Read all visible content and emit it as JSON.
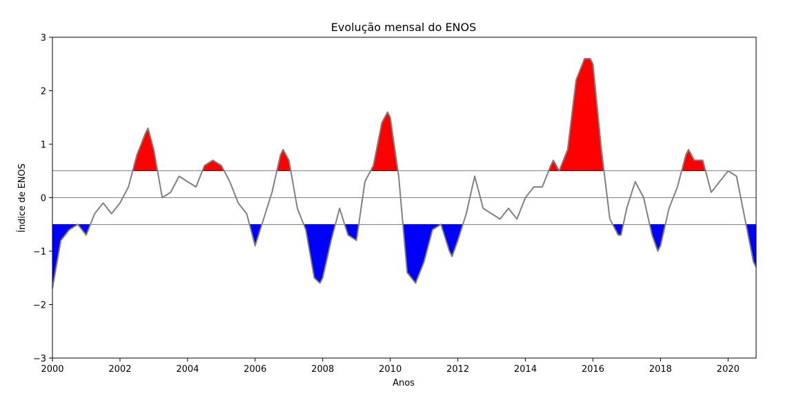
{
  "chart_data": {
    "type": "area",
    "title": "Evolução mensal do ENOS",
    "xlabel": "Anos",
    "ylabel": "Índice de ENOS",
    "xlim": [
      2000,
      2020.83
    ],
    "ylim": [
      -3,
      3
    ],
    "xticks": [
      2000,
      2002,
      2004,
      2006,
      2008,
      2010,
      2012,
      2014,
      2016,
      2018,
      2020
    ],
    "xtick_labels": [
      "2000",
      "2002",
      "2004",
      "2006",
      "2008",
      "2010",
      "2012",
      "2014",
      "2016",
      "2018",
      "2020"
    ],
    "yticks": [
      -3,
      -2,
      -1,
      0,
      1,
      2,
      3
    ],
    "ytick_labels": [
      "−3",
      "−2",
      "−1",
      "0",
      "1",
      "2",
      "3"
    ],
    "reference_lines": [
      0.5,
      0,
      -0.5
    ],
    "fill_above": {
      "threshold": 0.5,
      "color": "#ff0000"
    },
    "fill_below": {
      "threshold": -0.5,
      "color": "#0000ff"
    },
    "line_color": "#808080",
    "grid": false,
    "series": [
      {
        "x": [
          2000.0,
          2000.25,
          2000.5,
          2000.75,
          2001.0,
          2001.25,
          2001.5,
          2001.75,
          2002.0,
          2002.25,
          2002.5,
          2002.75,
          2002.83,
          2003.0,
          2003.25,
          2003.5,
          2003.75,
          2004.0,
          2004.25,
          2004.5,
          2004.75,
          2005.0,
          2005.25,
          2005.5,
          2005.75,
          2006.0,
          2006.25,
          2006.5,
          2006.75,
          2006.83,
          2007.0,
          2007.25,
          2007.5,
          2007.75,
          2007.92,
          2008.0,
          2008.25,
          2008.5,
          2008.75,
          2009.0,
          2009.25,
          2009.5,
          2009.75,
          2009.92,
          2010.0,
          2010.25,
          2010.5,
          2010.75,
          2011.0,
          2011.25,
          2011.5,
          2011.75,
          2011.83,
          2012.0,
          2012.25,
          2012.5,
          2012.75,
          2013.0,
          2013.25,
          2013.5,
          2013.75,
          2014.0,
          2014.25,
          2014.5,
          2014.75,
          2014.83,
          2015.0,
          2015.25,
          2015.5,
          2015.75,
          2015.92,
          2016.0,
          2016.25,
          2016.5,
          2016.75,
          2016.83,
          2017.0,
          2017.25,
          2017.5,
          2017.75,
          2017.92,
          2018.0,
          2018.25,
          2018.5,
          2018.75,
          2018.83,
          2019.0,
          2019.25,
          2019.5,
          2019.75,
          2020.0,
          2020.25,
          2020.5,
          2020.75,
          2020.83
        ],
        "values": [
          -1.7,
          -0.8,
          -0.6,
          -0.5,
          -0.7,
          -0.3,
          -0.1,
          -0.3,
          -0.1,
          0.2,
          0.8,
          1.2,
          1.3,
          0.9,
          0.0,
          0.1,
          0.4,
          0.3,
          0.2,
          0.6,
          0.7,
          0.6,
          0.3,
          -0.1,
          -0.3,
          -0.9,
          -0.4,
          0.1,
          0.8,
          0.9,
          0.7,
          -0.2,
          -0.6,
          -1.5,
          -1.6,
          -1.5,
          -0.8,
          -0.2,
          -0.7,
          -0.8,
          0.3,
          0.6,
          1.4,
          1.6,
          1.5,
          0.4,
          -1.4,
          -1.6,
          -1.2,
          -0.6,
          -0.5,
          -1.0,
          -1.1,
          -0.8,
          -0.3,
          0.4,
          -0.2,
          -0.3,
          -0.4,
          -0.2,
          -0.4,
          0.0,
          0.2,
          0.2,
          0.6,
          0.7,
          0.5,
          0.9,
          2.2,
          2.6,
          2.6,
          2.5,
          0.9,
          -0.4,
          -0.7,
          -0.7,
          -0.2,
          0.3,
          0.0,
          -0.7,
          -1.0,
          -0.9,
          -0.2,
          0.2,
          0.8,
          0.9,
          0.7,
          0.7,
          0.1,
          0.3,
          0.5,
          0.4,
          -0.4,
          -1.2,
          -1.3
        ]
      }
    ]
  }
}
